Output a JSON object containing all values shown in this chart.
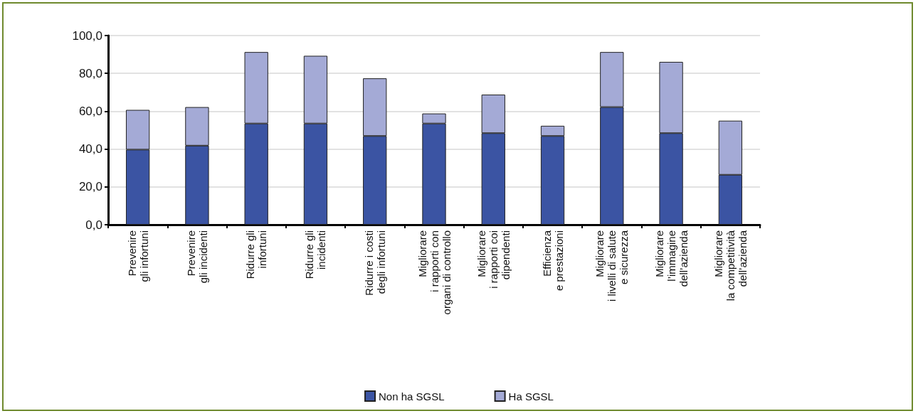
{
  "chart_data": {
    "type": "bar",
    "stacked": true,
    "categories": [
      "Prevenire\ngli infortuni",
      "Prevenire\ngli incidenti",
      "Ridurre gli\ninfortuni",
      "Ridurre gli\nincidenti",
      "Ridurre i costi\ndegli infortuni",
      "Migliorare\ni rapporti con\norgani di controllo",
      "Migliorare\ni rapporti coi\ndipendenti",
      "Efficienza\ne prestazioni",
      "Migliorare\ni livelli di salute\ne sicurezza",
      "Migliorare\nl’immagine\ndell’azienda",
      "Migliorare\nla competitività\ndell’azienda"
    ],
    "series": [
      {
        "name": "Non ha SGSL",
        "color": "#3b54a3",
        "values": [
          39.7,
          41.8,
          53.5,
          53.5,
          46.9,
          53.5,
          48.4,
          46.9,
          62.2,
          48.4,
          26.4
        ]
      },
      {
        "name": "Ha SGSL",
        "color": "#a4aad6",
        "values": [
          21.0,
          20.4,
          37.8,
          35.8,
          30.5,
          5.3,
          20.4,
          5.4,
          29.1,
          37.7,
          28.6
        ]
      }
    ],
    "ylim": [
      0,
      100
    ],
    "yticks": [
      {
        "value": 0,
        "label": "0,0"
      },
      {
        "value": 20,
        "label": "20,0"
      },
      {
        "value": 40,
        "label": "40,0"
      },
      {
        "value": 60,
        "label": "60,0"
      },
      {
        "value": 80,
        "label": "80,0"
      },
      {
        "value": 100,
        "label": "100,0"
      }
    ],
    "grid": "y",
    "legend": "bottom"
  }
}
